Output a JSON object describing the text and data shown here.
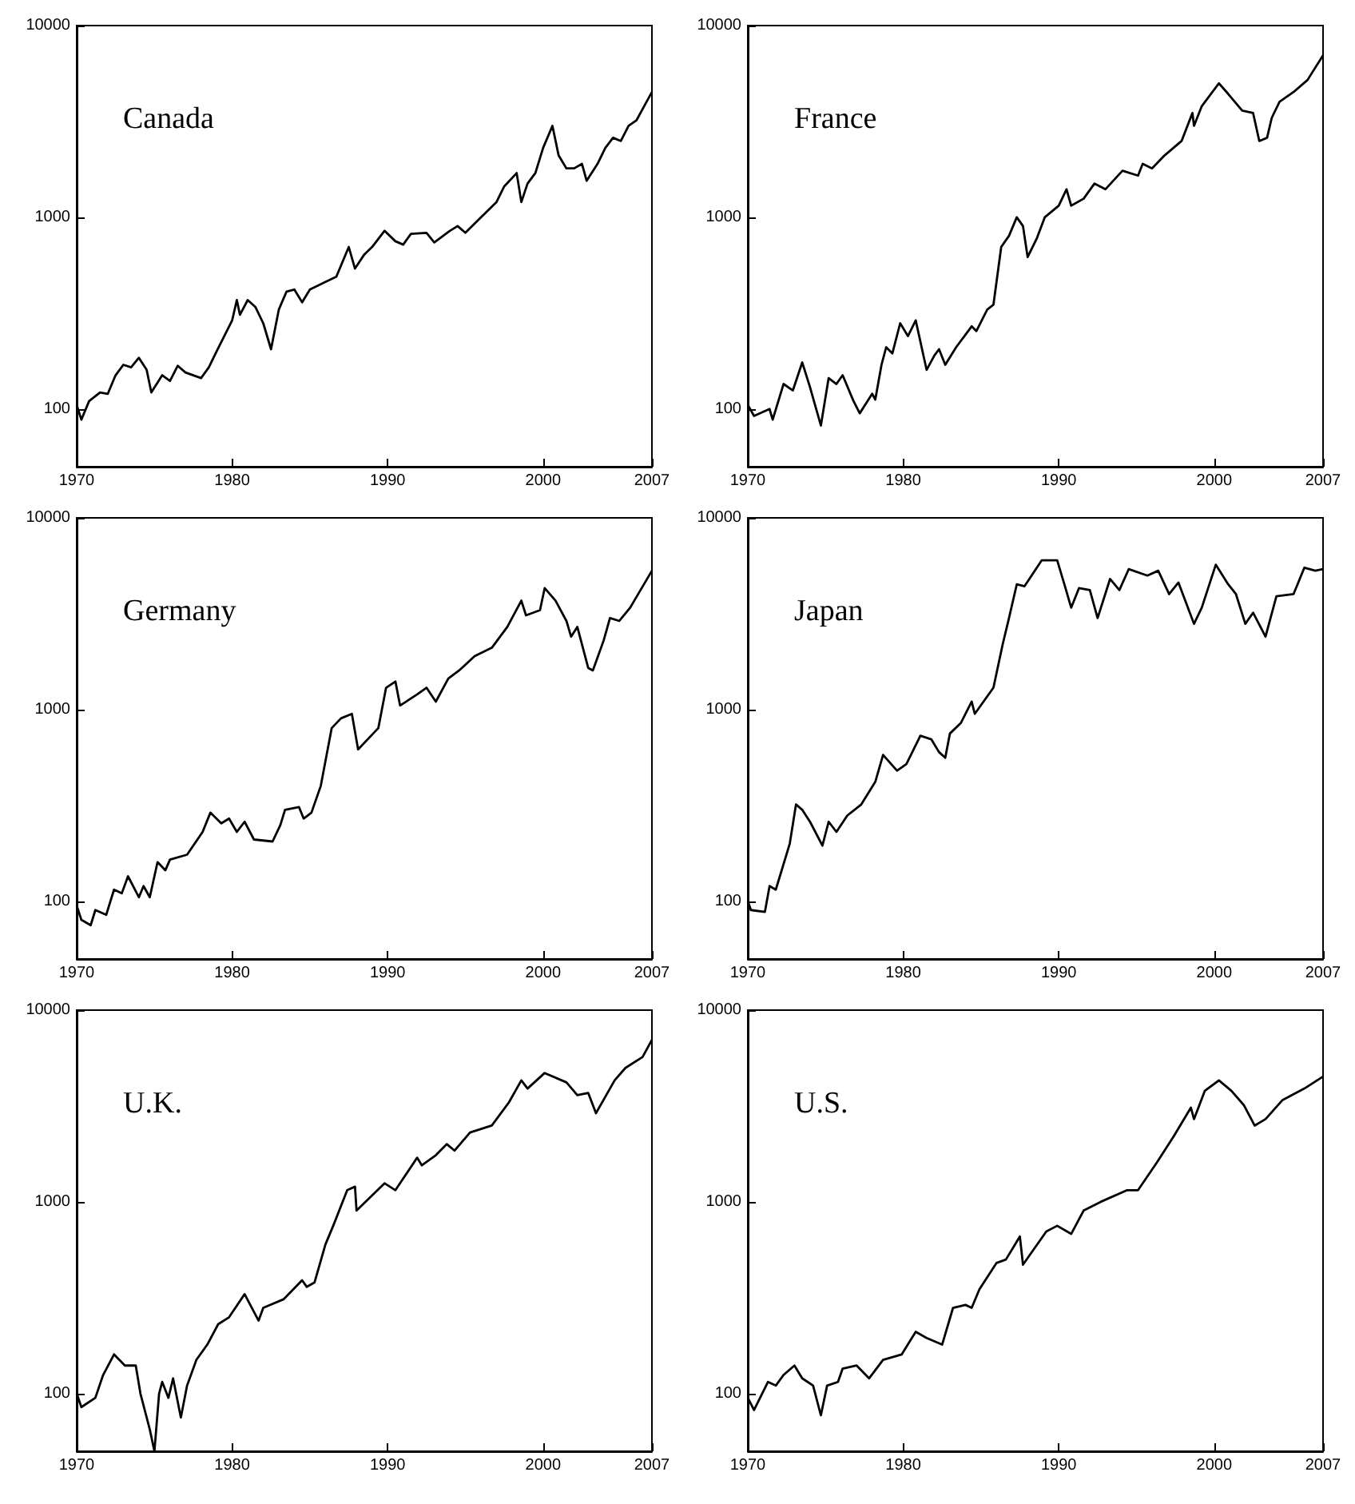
{
  "chart_data": [
    {
      "type": "line",
      "title": "Canada",
      "color": "#000000",
      "log": true,
      "xlim": [
        1970,
        2007
      ],
      "ylim": [
        50,
        10000
      ],
      "xticks": [
        1970,
        1980,
        1990,
        2000,
        2007
      ],
      "yticks": [
        100,
        1000,
        10000
      ],
      "x": [
        1970,
        1970.3,
        1970.8,
        1971.5,
        1972,
        1972.5,
        1973,
        1973.5,
        1974,
        1974.5,
        1974.8,
        1975.5,
        1976,
        1976.5,
        1977,
        1978,
        1978.5,
        1979,
        1980,
        1980.3,
        1980.5,
        1981,
        1981.5,
        1982,
        1982.5,
        1983,
        1983.5,
        1984,
        1984.5,
        1985,
        1986,
        1986.7,
        1987.5,
        1987.9,
        1988.5,
        1989,
        1989.8,
        1990.5,
        1991,
        1991.5,
        1992.5,
        1993,
        1994,
        1994.5,
        1995,
        1996,
        1997,
        1997.5,
        1998.3,
        1998.6,
        1999,
        1999.5,
        2000,
        2000.6,
        2001,
        2001.5,
        2002,
        2002.5,
        2002.8,
        2003.5,
        2004,
        2004.5,
        2005,
        2005.5,
        2006,
        2006.5,
        2007
      ],
      "values": [
        105,
        88,
        110,
        122,
        120,
        150,
        170,
        165,
        185,
        160,
        122,
        150,
        140,
        168,
        155,
        145,
        165,
        200,
        290,
        370,
        310,
        370,
        340,
        280,
        205,
        330,
        410,
        420,
        360,
        420,
        460,
        490,
        700,
        540,
        640,
        700,
        850,
        750,
        720,
        820,
        830,
        740,
        850,
        900,
        830,
        1000,
        1200,
        1450,
        1700,
        1200,
        1500,
        1700,
        2300,
        3000,
        2100,
        1800,
        1800,
        1900,
        1550,
        1900,
        2300,
        2600,
        2500,
        3000,
        3200,
        3800,
        4500
      ]
    },
    {
      "type": "line",
      "title": "France",
      "color": "#000000",
      "log": true,
      "xlim": [
        1970,
        2007
      ],
      "ylim": [
        50,
        10000
      ],
      "xticks": [
        1970,
        1980,
        1990,
        2000,
        2007
      ],
      "yticks": [
        100,
        1000,
        10000
      ],
      "x": [
        1970,
        1970.4,
        1971.4,
        1971.6,
        1972.3,
        1972.9,
        1973.5,
        1974,
        1974.7,
        1975.2,
        1975.7,
        1976.1,
        1976.8,
        1977.2,
        1978,
        1978.2,
        1978.6,
        1978.9,
        1979.3,
        1979.8,
        1980.3,
        1980.8,
        1981.5,
        1982,
        1982.3,
        1982.7,
        1983.4,
        1984.4,
        1984.7,
        1985.4,
        1985.8,
        1986.3,
        1986.8,
        1987.3,
        1987.7,
        1988,
        1988.6,
        1989.1,
        1990,
        1990.5,
        1990.8,
        1991.6,
        1992.3,
        1993,
        1994.1,
        1995.1,
        1995.4,
        1996,
        1996.8,
        1997.9,
        1998.6,
        1998.7,
        1999.2,
        2000.3,
        2000.9,
        2001.8,
        2002.5,
        2002.9,
        2003.4,
        2003.7,
        2004.2,
        2005.1,
        2006,
        2007
      ],
      "values": [
        105,
        92,
        100,
        88,
        135,
        125,
        175,
        130,
        82,
        145,
        135,
        150,
        110,
        95,
        120,
        112,
        170,
        210,
        195,
        280,
        240,
        290,
        160,
        190,
        205,
        170,
        210,
        270,
        255,
        330,
        350,
        700,
        800,
        1000,
        900,
        620,
        780,
        1000,
        1150,
        1400,
        1150,
        1250,
        1500,
        1400,
        1750,
        1650,
        1900,
        1800,
        2100,
        2500,
        3500,
        3000,
        3800,
        5000,
        4400,
        3600,
        3500,
        2500,
        2600,
        3300,
        4000,
        4500,
        5200,
        7000
      ]
    },
    {
      "type": "line",
      "title": "Germany",
      "color": "#000000",
      "log": true,
      "xlim": [
        1970,
        2007
      ],
      "ylim": [
        50,
        10000
      ],
      "xticks": [
        1970,
        1980,
        1990,
        2000,
        2007
      ],
      "yticks": [
        100,
        1000,
        10000
      ],
      "x": [
        1970,
        1970.3,
        1970.9,
        1971.2,
        1971.9,
        1972.4,
        1972.9,
        1973.3,
        1974,
        1974.3,
        1974.7,
        1975.2,
        1975.7,
        1976,
        1977.1,
        1978.1,
        1978.6,
        1979.3,
        1979.8,
        1980.3,
        1980.8,
        1981.4,
        1982.6,
        1983.1,
        1983.4,
        1984.3,
        1984.6,
        1985.1,
        1985.7,
        1986.4,
        1987,
        1987.7,
        1988.1,
        1989.4,
        1989.9,
        1990.5,
        1990.8,
        1991.9,
        1992.5,
        1993.1,
        1993.9,
        1994.6,
        1995.6,
        1996.7,
        1997.7,
        1998.6,
        1998.9,
        1999.8,
        2000.1,
        2000.8,
        2001.5,
        2001.8,
        2002.2,
        2002.9,
        2003.2,
        2003.9,
        2004.3,
        2004.9,
        2005.6,
        2007
      ],
      "values": [
        95,
        80,
        75,
        90,
        85,
        115,
        110,
        135,
        105,
        120,
        105,
        160,
        145,
        165,
        175,
        230,
        290,
        255,
        270,
        230,
        260,
        210,
        205,
        250,
        300,
        310,
        270,
        290,
        400,
        800,
        900,
        950,
        620,
        800,
        1300,
        1400,
        1050,
        1200,
        1300,
        1100,
        1450,
        1600,
        1900,
        2100,
        2700,
        3700,
        3100,
        3300,
        4300,
        3700,
        2900,
        2400,
        2700,
        1650,
        1600,
        2300,
        3000,
        2900,
        3400,
        5300
      ]
    },
    {
      "type": "line",
      "title": "Japan",
      "color": "#000000",
      "log": true,
      "xlim": [
        1970,
        2007
      ],
      "ylim": [
        50,
        10000
      ],
      "xticks": [
        1970,
        1980,
        1990,
        2000,
        2007
      ],
      "yticks": [
        100,
        1000,
        10000
      ],
      "x": [
        1970,
        1970.2,
        1971.1,
        1971.4,
        1971.8,
        1972.7,
        1973.1,
        1973.5,
        1974,
        1974.8,
        1975.2,
        1975.7,
        1976.4,
        1977.3,
        1978.2,
        1978.7,
        1979.6,
        1980.2,
        1981.1,
        1981.8,
        1982.3,
        1982.7,
        1983,
        1983.7,
        1984.4,
        1984.6,
        1985.8,
        1986.4,
        1986.8,
        1987.3,
        1987.8,
        1988.9,
        1989.9,
        1990.4,
        1990.8,
        1991.3,
        1992,
        1992.5,
        1993.3,
        1993.9,
        1994.5,
        1995.7,
        1996.4,
        1997.1,
        1997.7,
        1998.7,
        1999.2,
        2000.1,
        2000.9,
        2001.4,
        2002,
        2002.5,
        2003.3,
        2004,
        2005.1,
        2005.8,
        2006.5,
        2007
      ],
      "values": [
        100,
        90,
        88,
        120,
        115,
        200,
        320,
        300,
        260,
        195,
        260,
        230,
        280,
        320,
        420,
        580,
        480,
        520,
        730,
        700,
        600,
        560,
        750,
        850,
        1100,
        950,
        1300,
        2200,
        3000,
        4500,
        4400,
        6000,
        6000,
        4400,
        3400,
        4300,
        4200,
        3000,
        4800,
        4200,
        5400,
        5000,
        5300,
        4000,
        4600,
        2800,
        3400,
        5700,
        4500,
        4000,
        2800,
        3200,
        2400,
        3900,
        4000,
        5500,
        5300,
        5400
      ]
    },
    {
      "type": "line",
      "title": "U.K.",
      "color": "#000000",
      "log": true,
      "xlim": [
        1970,
        2007
      ],
      "ylim": [
        50,
        10000
      ],
      "xticks": [
        1970,
        1980,
        1990,
        2000,
        2007
      ],
      "yticks": [
        100,
        1000,
        10000
      ],
      "x": [
        1970,
        1970.3,
        1971.2,
        1971.7,
        1972.4,
        1973.1,
        1973.8,
        1974.1,
        1974.7,
        1975,
        1975.3,
        1975.5,
        1975.9,
        1976.2,
        1976.7,
        1977.1,
        1977.7,
        1978.4,
        1979.1,
        1979.8,
        1980.8,
        1981.7,
        1982,
        1983.3,
        1984.5,
        1984.8,
        1985.3,
        1986,
        1986.5,
        1987.4,
        1987.9,
        1988,
        1989.8,
        1990.5,
        1991.9,
        1992.2,
        1993.1,
        1993.8,
        1994.3,
        1995.3,
        1996.7,
        1997.8,
        1998.6,
        1999,
        2000.1,
        2001.5,
        2002.2,
        2002.9,
        2003.4,
        2004.6,
        2005.3,
        2006.4,
        2007
      ],
      "values": [
        100,
        85,
        95,
        125,
        160,
        140,
        140,
        100,
        65,
        50,
        100,
        115,
        95,
        120,
        75,
        110,
        150,
        180,
        230,
        250,
        330,
        240,
        280,
        310,
        390,
        360,
        380,
        600,
        750,
        1150,
        1200,
        900,
        1250,
        1150,
        1700,
        1550,
        1750,
        2000,
        1850,
        2300,
        2500,
        3300,
        4300,
        3900,
        4700,
        4200,
        3600,
        3700,
        2900,
        4300,
        5000,
        5700,
        7000
      ]
    },
    {
      "type": "line",
      "title": "U.S.",
      "color": "#000000",
      "log": true,
      "xlim": [
        1970,
        2007
      ],
      "ylim": [
        50,
        10000
      ],
      "xticks": [
        1970,
        1980,
        1990,
        2000,
        2007
      ],
      "yticks": [
        100,
        1000,
        10000
      ],
      "x": [
        1970,
        1970.4,
        1971.3,
        1971.8,
        1972.3,
        1973,
        1973.5,
        1974.2,
        1974.7,
        1975.1,
        1975.8,
        1976.1,
        1977,
        1977.8,
        1978.7,
        1979.9,
        1980.8,
        1981.5,
        1982.5,
        1983.2,
        1984,
        1984.4,
        1984.9,
        1986,
        1986.6,
        1987.5,
        1987.7,
        1989.2,
        1989.9,
        1990.8,
        1991.6,
        1992.7,
        1994.4,
        1995.1,
        1996.3,
        1997.4,
        1998.5,
        1998.7,
        1999.4,
        2000.3,
        2001.1,
        2001.9,
        2002.6,
        2003.3,
        2004.4,
        2005.8,
        2007
      ],
      "values": [
        95,
        82,
        115,
        110,
        125,
        140,
        120,
        110,
        77,
        110,
        115,
        135,
        140,
        120,
        150,
        160,
        210,
        195,
        180,
        280,
        290,
        280,
        350,
        480,
        500,
        660,
        470,
        700,
        750,
        680,
        900,
        1000,
        1150,
        1150,
        1600,
        2200,
        3100,
        2700,
        3800,
        4300,
        3800,
        3200,
        2500,
        2700,
        3400,
        3900,
        4500
      ]
    }
  ]
}
